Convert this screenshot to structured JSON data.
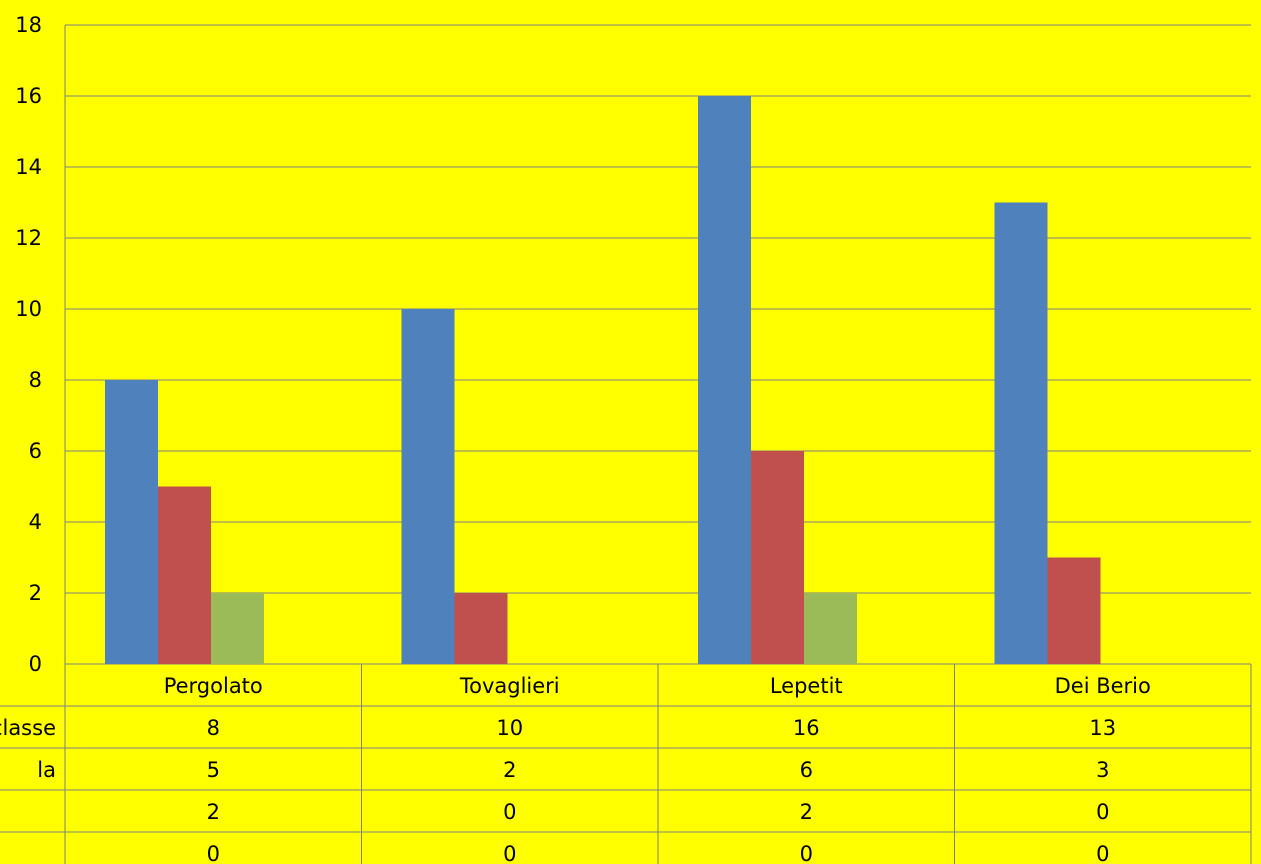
{
  "chart_data": {
    "type": "bar",
    "categories": [
      "Pergolato",
      "Tovaglieri",
      "Lepetit",
      "Dei Berio"
    ],
    "series": [
      {
        "values": [
          8,
          10,
          16,
          13
        ],
        "color": "#4f81bd",
        "row_label": "classe"
      },
      {
        "values": [
          5,
          2,
          6,
          3
        ],
        "color": "#c0504d",
        "row_label": "la"
      },
      {
        "values": [
          2,
          0,
          2,
          0
        ],
        "color": "#9bbb59",
        "row_label": ""
      },
      {
        "values": [
          0,
          0,
          0,
          0
        ],
        "color": "#8064a2",
        "row_label": ""
      }
    ],
    "ylim": [
      0,
      18
    ],
    "yticks": [
      "0",
      "2",
      "4",
      "6",
      "8",
      "10",
      "12",
      "14",
      "16",
      "18"
    ],
    "grid": true,
    "data_table": true,
    "background": "#ffff00"
  }
}
